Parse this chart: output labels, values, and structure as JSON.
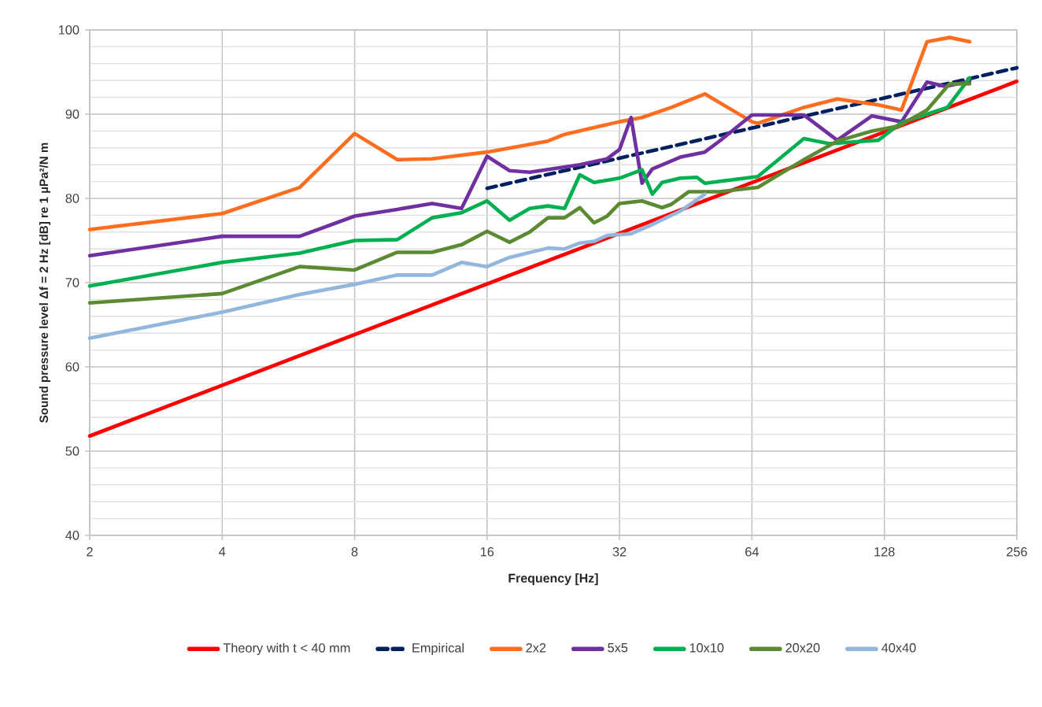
{
  "chart_data": {
    "type": "line",
    "xlabel": "Frequency [Hz]",
    "ylabel": "Sound pressure level Δf = 2 Hz [dB] re 1 µPa²/N m",
    "log": "x",
    "xlim": [
      2,
      256
    ],
    "xticks": [
      2,
      4,
      8,
      16,
      32,
      64,
      128,
      256
    ],
    "ylim": [
      40,
      100
    ],
    "yticks": [
      40,
      {
        "value": 42,
        "label": null
      },
      {
        "value": 44,
        "label": null
      },
      {
        "value": 46,
        "label": null
      },
      {
        "value": 48,
        "label": null
      },
      50,
      {
        "value": 52,
        "label": null
      },
      {
        "value": 54,
        "label": null
      },
      {
        "value": 56,
        "label": null
      },
      {
        "value": 58,
        "label": null
      },
      60,
      {
        "value": 62,
        "label": null
      },
      {
        "value": 64,
        "label": null
      },
      {
        "value": 66,
        "label": null
      },
      {
        "value": 68,
        "label": null
      },
      70,
      {
        "value": 72,
        "label": null
      },
      {
        "value": 74,
        "label": null
      },
      {
        "value": 76,
        "label": null
      },
      {
        "value": 78,
        "label": null
      },
      80,
      {
        "value": 82,
        "label": null
      },
      {
        "value": 84,
        "label": null
      },
      {
        "value": 86,
        "label": null
      },
      {
        "value": 88,
        "label": null
      },
      90,
      {
        "value": 92,
        "label": null
      },
      {
        "value": 94,
        "label": null
      },
      {
        "value": 96,
        "label": null
      },
      {
        "value": 98,
        "label": null
      },
      100
    ],
    "grid": true,
    "legend": "bottom",
    "series": [
      {
        "name": "Theory with t < 40 mm",
        "color": "#ff0000",
        "x": [
          2,
          256
        ],
        "values": [
          51.8,
          93.9
        ]
      },
      {
        "name": "Empirical",
        "color": "#002060",
        "line_style": "dashed",
        "x": [
          16,
          256
        ],
        "values": [
          81.2,
          95.5
        ]
      },
      {
        "name": "2x2",
        "color": "#ff6d1f",
        "x": [
          2,
          4,
          6,
          8,
          10,
          12,
          16,
          22,
          24,
          32,
          36,
          42,
          50,
          64,
          66,
          84,
          100,
          124,
          140,
          160,
          180,
          200
        ],
        "values": [
          76.3,
          78.2,
          81.3,
          87.7,
          84.6,
          84.7,
          85.5,
          86.8,
          87.6,
          89.1,
          89.6,
          90.8,
          92.4,
          89.1,
          88.9,
          90.8,
          91.8,
          91.1,
          90.5,
          98.6,
          99.1,
          98.6
        ]
      },
      {
        "name": "5x5",
        "color": "#7030a0",
        "x": [
          2,
          4,
          6,
          8,
          10,
          12,
          14,
          16,
          18,
          20,
          26,
          30,
          32,
          34,
          36,
          38,
          44,
          50,
          54,
          64,
          84,
          100,
          120,
          140,
          160,
          176,
          200
        ],
        "values": [
          73.2,
          75.5,
          75.5,
          77.9,
          78.7,
          79.4,
          78.8,
          85.0,
          83.3,
          83.1,
          84.0,
          84.7,
          85.8,
          89.6,
          81.8,
          83.5,
          84.9,
          85.5,
          86.8,
          89.9,
          89.9,
          86.9,
          89.8,
          89.1,
          93.8,
          93.3,
          93.9
        ]
      },
      {
        "name": "10x10",
        "color": "#00b050",
        "x": [
          2,
          4,
          6,
          8,
          10,
          12,
          14,
          16,
          18,
          20,
          22,
          24,
          26,
          28,
          32,
          36,
          38,
          40,
          44,
          48,
          50,
          66,
          84,
          96,
          124,
          140,
          178,
          200
        ],
        "values": [
          69.6,
          72.4,
          73.5,
          75.0,
          75.1,
          77.7,
          78.3,
          79.7,
          77.4,
          78.8,
          79.1,
          78.8,
          82.8,
          81.9,
          82.4,
          83.4,
          80.5,
          81.9,
          82.4,
          82.5,
          81.8,
          82.6,
          87.1,
          86.5,
          86.9,
          89.0,
          90.8,
          94.3
        ]
      },
      {
        "name": "20x20",
        "color": "#5b8a32",
        "x": [
          2,
          4,
          6,
          8,
          10,
          12,
          14,
          16,
          18,
          20,
          22,
          24,
          26,
          28,
          30,
          32,
          36,
          40,
          42,
          46,
          54,
          66,
          84,
          100,
          120,
          138,
          160,
          180,
          200
        ],
        "values": [
          67.6,
          68.7,
          71.9,
          71.5,
          73.6,
          73.6,
          74.5,
          76.1,
          74.8,
          76.0,
          77.7,
          77.7,
          78.9,
          77.1,
          77.9,
          79.4,
          79.7,
          78.9,
          79.3,
          80.8,
          80.8,
          81.3,
          84.6,
          86.8,
          88.0,
          88.6,
          90.5,
          93.6,
          93.6
        ]
      },
      {
        "name": "40x40",
        "color": "#93b6dc",
        "x": [
          2,
          4,
          6,
          8,
          10,
          12,
          14,
          16,
          18,
          22,
          24,
          26,
          28,
          30,
          34,
          38,
          44,
          50
        ],
        "values": [
          63.4,
          66.5,
          68.6,
          69.8,
          70.9,
          70.9,
          72.4,
          71.9,
          73.0,
          74.1,
          74.0,
          74.7,
          74.9,
          75.6,
          75.8,
          76.9,
          78.5,
          80.5
        ]
      }
    ]
  }
}
